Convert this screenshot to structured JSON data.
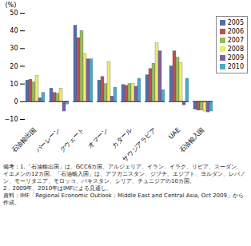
{
  "chart_data": {
    "type": "bar",
    "y_label": "(%)",
    "categories": [
      "石油輸出国",
      "バーレーン",
      "クウェート",
      "オマーン",
      "カタール",
      "サウジアラビア",
      "UAE",
      "石油輸入国"
    ],
    "series": [
      {
        "name": "2005",
        "color": "#4f6fb3",
        "values": [
          12,
          7.5,
          43,
          12,
          9.5,
          15,
          20,
          -4.5
        ]
      },
      {
        "name": "2006",
        "color": "#c0504d",
        "values": [
          12.5,
          5,
          36,
          14,
          9,
          18.5,
          28.5,
          -5
        ]
      },
      {
        "name": "2007",
        "color": "#9bbb59",
        "values": [
          11,
          4.5,
          40,
          10,
          10,
          21.5,
          25,
          -5
        ]
      },
      {
        "name": "2008",
        "color": "#eeea6c",
        "values": [
          14.5,
          7.5,
          27,
          22.5,
          10,
          33,
          22,
          -5.5
        ]
      },
      {
        "name": "2009",
        "color": "#7a5fa6",
        "values": [
          2,
          -5.5,
          24,
          3,
          8.5,
          28.5,
          -2,
          -6
        ]
      },
      {
        "name": "2010",
        "color": "#4bacc6",
        "values": [
          5,
          -1.5,
          24,
          8,
          13,
          6.5,
          13,
          -5.5
        ]
      }
    ],
    "ylim": [
      -10,
      50
    ],
    "yticks": [
      -10,
      0,
      10,
      20,
      30,
      40,
      50
    ],
    "grid": false,
    "legend": "right",
    "notes": [
      "備考：1.「石油輸出国」は、GCC6カ国、アルジェリア、イラン、イラク、リビア、スーダン、イエメンの12カ国。「石油輸入国」は、アフガニスタン、ジブチ、エジプト、ヨルダン、レバノン、モーリタニア、モロッコ、パキスタン、シリア、チュニジアの10カ国。",
      "2．2009年、2010年はIMFによる見通し。"
    ],
    "source": "資料：IMF「Regional Economic Outlook：Middle East and Central Asia, Oct 2009」から作成。"
  }
}
